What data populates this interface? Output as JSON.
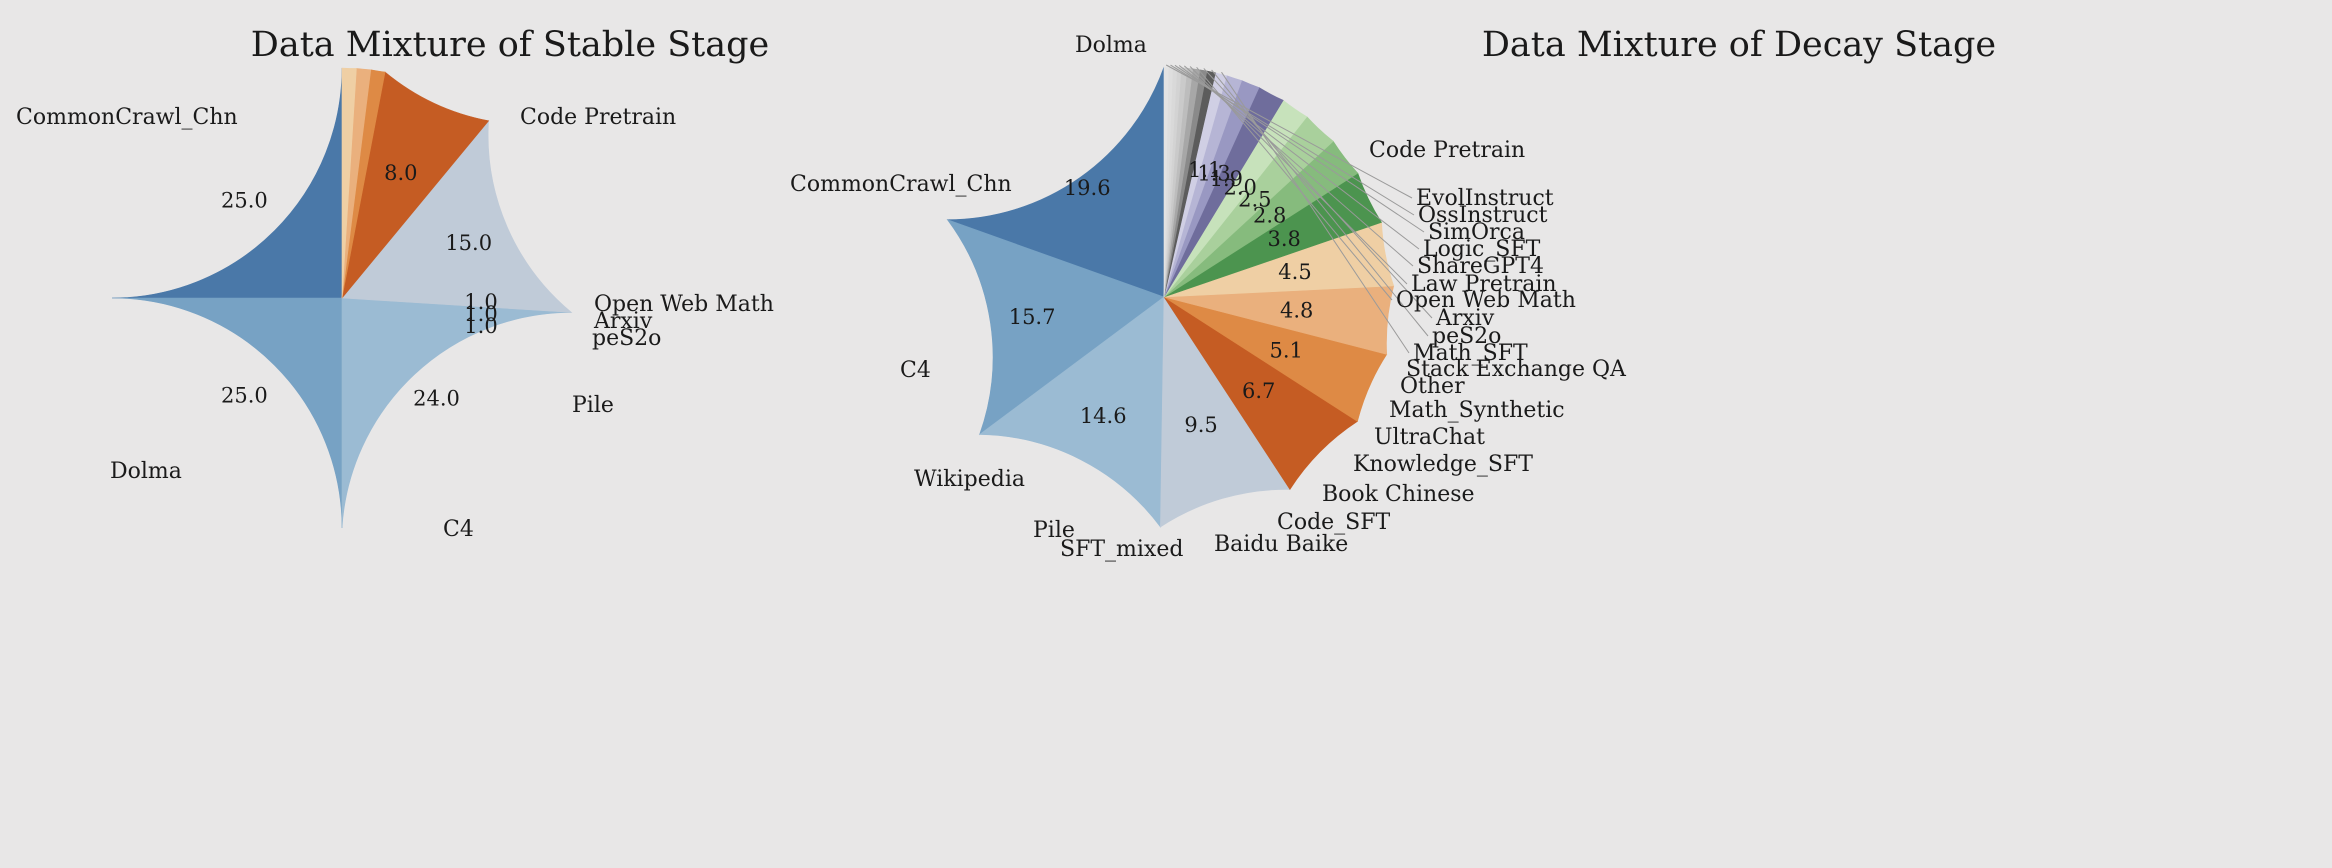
{
  "chart_data": [
    {
      "type": "pie",
      "title": "Data Mixture of Stable Stage",
      "slices": [
        {
          "label": "Code Pretrain",
          "value": 25.0,
          "pct": "25.0",
          "color": "#4a78a8"
        },
        {
          "label": "CommonCrawl_Chn",
          "value": 25.0,
          "pct": "25.0",
          "color": "#77a2c4"
        },
        {
          "label": "Dolma",
          "value": 24.0,
          "pct": "24.0",
          "color": "#9bbbd3"
        },
        {
          "label": "C4",
          "value": 15.0,
          "pct": "15.0",
          "color": "#c0cbd8"
        },
        {
          "label": "Pile",
          "value": 8.0,
          "pct": "8.0",
          "color": "#c55c23"
        },
        {
          "label": "peS2o",
          "value": 1.0,
          "pct": "1.0",
          "color": "#de8a45"
        },
        {
          "label": "Arxiv",
          "value": 1.0,
          "pct": "1.0",
          "color": "#eab07d"
        },
        {
          "label": "Open Web Math",
          "value": 1.0,
          "pct": "1.0",
          "color": "#efcfa4"
        }
      ]
    },
    {
      "type": "pie",
      "title": "Data Mixture of Decay Stage",
      "slices": [
        {
          "label": "Code Pretrain",
          "value": 19.6,
          "pct": "19.6",
          "color": "#4a78a8"
        },
        {
          "label": "Dolma",
          "value": 15.7,
          "pct": "15.7",
          "color": "#77a2c4"
        },
        {
          "label": "CommonCrawl_Chn",
          "value": 14.6,
          "pct": "14.6",
          "color": "#9bbbd3"
        },
        {
          "label": "C4",
          "value": 9.5,
          "pct": "9.5",
          "color": "#c0cbd8"
        },
        {
          "label": "Wikipedia",
          "value": 6.7,
          "pct": "6.7",
          "color": "#c55c23"
        },
        {
          "label": "Pile",
          "value": 5.1,
          "pct": "5.1",
          "color": "#de8a45"
        },
        {
          "label": "SFT_mixed",
          "value": 4.8,
          "pct": "4.8",
          "color": "#eab07d"
        },
        {
          "label": "Baidu Baike",
          "value": 4.5,
          "pct": "4.5",
          "color": "#efcfa4"
        },
        {
          "label": "Code_SFT",
          "value": 3.8,
          "pct": "3.8",
          "color": "#4c944f"
        },
        {
          "label": "Book Chinese",
          "value": 2.8,
          "pct": "2.8",
          "color": "#86bb7d"
        },
        {
          "label": "Knowledge_SFT",
          "value": 2.5,
          "pct": "2.5",
          "color": "#a9d09c"
        },
        {
          "label": "UltraChat",
          "value": 2.0,
          "pct": "2.0",
          "color": "#c7e2bb"
        },
        {
          "label": "Math_Synthetic",
          "value": 1.9,
          "pct": "1.9",
          "color": "#6f6d9c"
        },
        {
          "label": "Other",
          "value": 1.3,
          "pct": "1.3",
          "color": "#9998c2"
        },
        {
          "label": "Stack Exchange QA",
          "value": 1.1,
          "pct": "1.1",
          "color": "#b6b5d5"
        },
        {
          "label": "Math_SFT",
          "value": 0.8,
          "pct": "",
          "color": "#d0cfe4"
        },
        {
          "label": "peS2o",
          "value": 0.6,
          "pct": "",
          "color": "#5c5c5c"
        },
        {
          "label": "Arxiv",
          "value": 0.5,
          "pct": "",
          "color": "#8a8a8a"
        },
        {
          "label": "Open Web Math",
          "value": 0.5,
          "pct": "",
          "color": "#a7a7a7"
        },
        {
          "label": "Law Pretrain",
          "value": 0.4,
          "pct": "",
          "color": "#bdbdbd"
        },
        {
          "label": "ShareGPT4",
          "value": 0.4,
          "pct": "",
          "color": "#cacaca"
        },
        {
          "label": "Logic_SFT",
          "value": 0.3,
          "pct": "",
          "color": "#d3d3d3"
        },
        {
          "label": "SimOrca",
          "value": 0.3,
          "pct": "",
          "color": "#d9d9d9"
        },
        {
          "label": "OssInstruct",
          "value": 0.3,
          "pct": "",
          "color": "#dedede"
        },
        {
          "label": "EvolInstruct",
          "value": 0.3,
          "pct": "",
          "color": "#e3e3e3"
        }
      ]
    }
  ]
}
